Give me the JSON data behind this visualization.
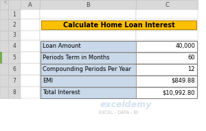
{
  "title": "Calculate Home Loan Interest",
  "title_bg": "#FFC000",
  "title_border": "#B8860B",
  "title_color": "#000000",
  "col_headers": [
    "A",
    "B",
    "C"
  ],
  "rows": [
    {
      "label": "Loan Amount",
      "value": "40,000"
    },
    {
      "label": "Periods Term in Months",
      "value": "60"
    },
    {
      "label": "Compounding Periods Per Year",
      "value": "12"
    },
    {
      "label": "EMI",
      "value": "$849.88"
    },
    {
      "label": "Total Interest",
      "value": "$10,992.80"
    }
  ],
  "table_label_bg": "#C9D9EA",
  "table_value_bg": "#FFFFFF",
  "table_border": "#7F7F7F",
  "sheet_bg": "#FFFFFF",
  "header_bg": "#D9D9D9",
  "header_border": "#BFBFBF",
  "row_numbers": [
    "1",
    "2",
    "3",
    "4",
    "5",
    "6",
    "7",
    "8"
  ],
  "watermark_text": "exceldemy",
  "watermark_sub": "EXCEL - DATA - BI",
  "watermark_color": "#B8D0E8",
  "fig_w": 3.0,
  "fig_h": 1.92,
  "dpi": 100
}
